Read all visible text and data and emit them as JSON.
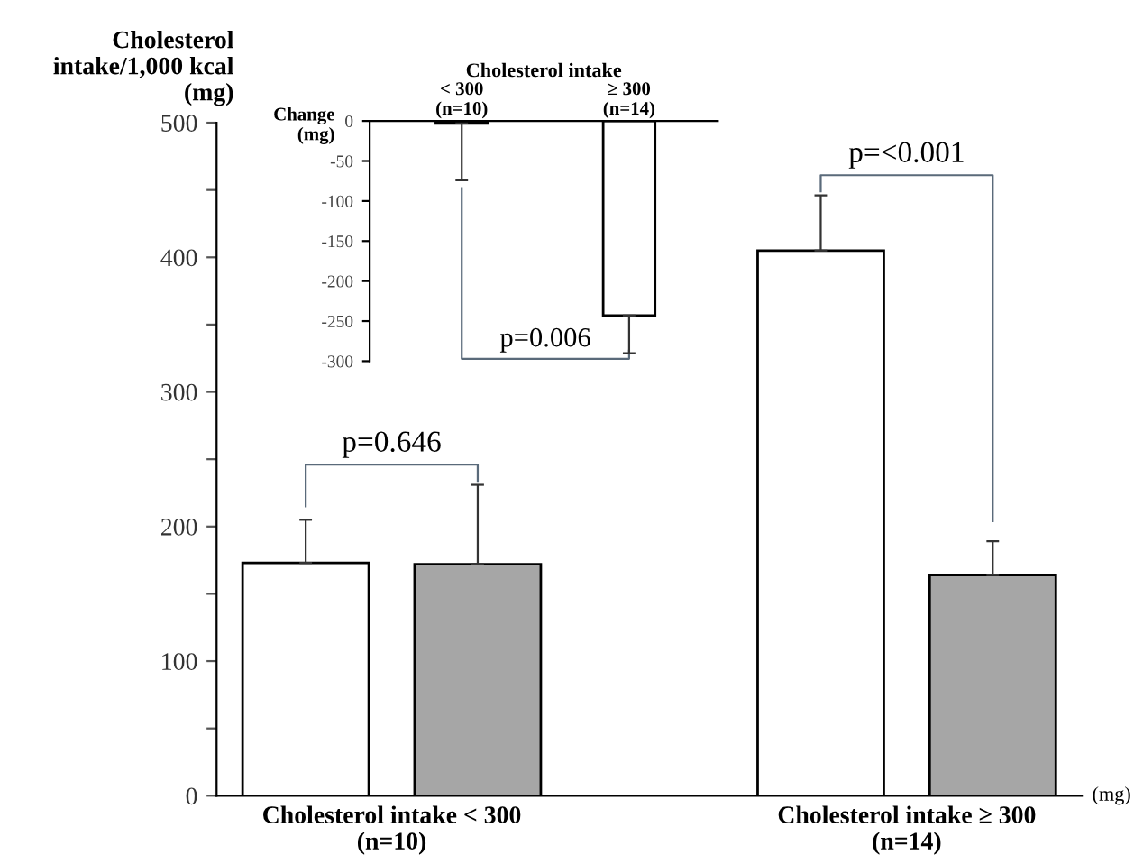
{
  "chart_data": [
    {
      "type": "bar",
      "ylabel": "Cholesterol\nintake/1,000 kcal\n(mg)",
      "categories": [
        "Cholesterol intake < 300\n(n=10)",
        "Cholesterol intake ≥ 300\n(n=14)"
      ],
      "series": [
        {
          "color": "#ffffff",
          "values": [
            173,
            405
          ],
          "errors": [
            [
              173,
              205
            ],
            [
              405,
              446
            ]
          ]
        },
        {
          "color": "#a6a6a6",
          "values": [
            172,
            164
          ],
          "errors": [
            [
              172,
              231
            ],
            [
              164,
              189
            ]
          ]
        }
      ],
      "ylim": [
        0,
        500
      ],
      "yticks": [
        0,
        {
          "value": 50,
          "label": null
        },
        100,
        {
          "value": 150,
          "label": null
        },
        200,
        {
          "value": 250,
          "label": null
        },
        300,
        {
          "value": 350,
          "label": null
        },
        400,
        {
          "value": 450,
          "label": null
        },
        500
      ],
      "grid": false,
      "legend": false,
      "annotations": [
        "p=0.646",
        "p=<0.001",
        "(mg)"
      ]
    },
    {
      "type": "bar",
      "xlabel": "Cholesterol intake",
      "ylabel": "Change\n(mg)",
      "categories": [
        "< 300\n(n=10)",
        "≥ 300\n(n=14)"
      ],
      "series": [
        {
          "color": "#ffffff",
          "values": [
            -3,
            -243
          ],
          "errors": [
            [
              -74,
              -3
            ],
            [
              -290,
              -243
            ]
          ]
        }
      ],
      "ylim": [
        -300,
        0
      ],
      "yticks": [
        0,
        -50,
        -100,
        -150,
        -200,
        -250,
        -300
      ],
      "grid": false,
      "legend": false,
      "annotations": [
        "p=0.006"
      ]
    }
  ]
}
